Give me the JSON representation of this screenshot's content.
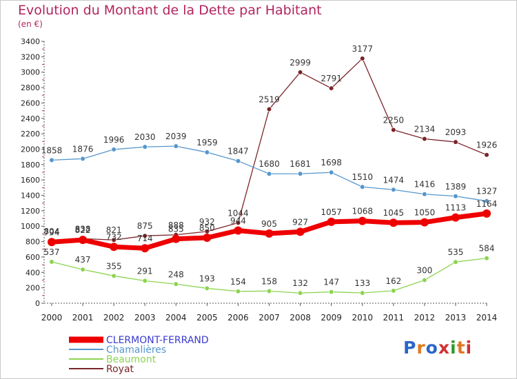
{
  "title": "Evolution du Montant de la Dette par Habitant",
  "unit": "(en €)",
  "logo": {
    "text": "Proxiti",
    "colors": [
      "#2a66c8",
      "#e07820",
      "#2a66c8",
      "#d03030",
      "#2a9a2a",
      "#e07820",
      "#d03030"
    ]
  },
  "chart_data": {
    "type": "line",
    "x": [
      "2000",
      "2001",
      "2002",
      "2003",
      "2004",
      "2005",
      "2006",
      "2007",
      "2008",
      "2009",
      "2010",
      "2011",
      "2012",
      "2013",
      "2014"
    ],
    "ylim": [
      0,
      3400
    ],
    "yticks": [
      0,
      200,
      400,
      600,
      800,
      1000,
      1200,
      1400,
      1600,
      1800,
      2000,
      2200,
      2400,
      2600,
      2800,
      3000,
      3200,
      3400
    ],
    "grid": false,
    "legend_position": "bottom-left",
    "series": [
      {
        "name": "CLERMONT-FERRAND",
        "color": "#ee0000",
        "values": [
          794,
          822,
          732,
          714,
          835,
          850,
          944,
          905,
          927,
          1057,
          1068,
          1045,
          1050,
          1113,
          1164
        ]
      },
      {
        "name": "Chamalières",
        "color": "#5596cc",
        "values": [
          1858,
          1876,
          1996,
          2030,
          2039,
          1959,
          1847,
          1680,
          1681,
          1698,
          1510,
          1474,
          1416,
          1389,
          1327
        ]
      },
      {
        "name": "Beaumont",
        "color": "#8cd450",
        "values": [
          537,
          437,
          355,
          291,
          248,
          193,
          154,
          158,
          132,
          147,
          133,
          162,
          300,
          535,
          584
        ]
      },
      {
        "name": "Royat",
        "color": "#7a2428",
        "values": [
          804,
          838,
          821,
          875,
          888,
          932,
          1044,
          2519,
          2999,
          2791,
          3177,
          2250,
          2134,
          2093,
          1926
        ]
      }
    ]
  }
}
